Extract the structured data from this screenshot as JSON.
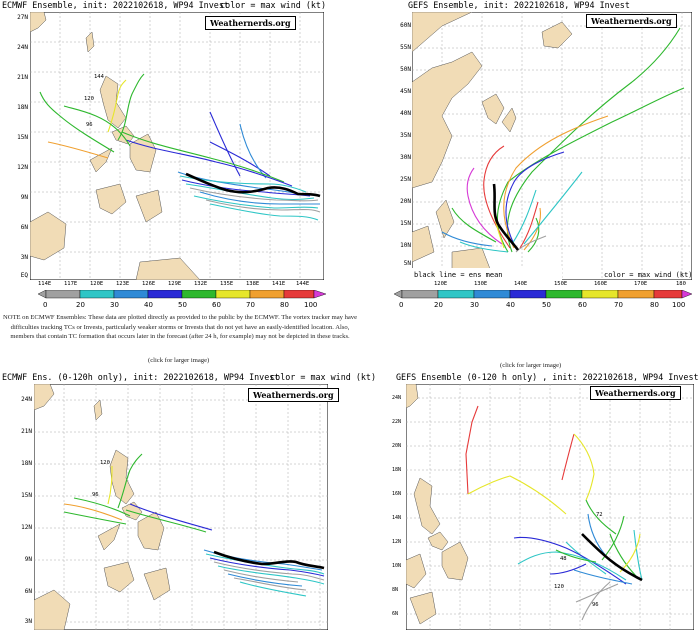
{
  "panels": [
    {
      "title": "ECMWF Ensemble, init: 2022102618, WP94 Invest",
      "right": "color = max wind (kt)"
    },
    {
      "title": "GEFS Ensemble, init: 2022102618, WP94 Invest",
      "right": "color = max wind (kt)"
    },
    {
      "title": "ECMWF Ens. (0-120h only), init: 2022102618, WP94 Invest",
      "right": "color = max wind (kt)"
    },
    {
      "title": "GEFS Ensemble (0-120 h only) , init: 2022102618, WP94 Invest",
      "right": ""
    }
  ],
  "brand": "Weathernerds.org",
  "p1": {
    "lat_labels": [
      "27N",
      "24N",
      "21N",
      "18N",
      "15N",
      "12N",
      "9N",
      "6N",
      "3N",
      "EQ"
    ],
    "lon_labels": [
      "114E",
      "117E",
      "120E",
      "123E",
      "126E",
      "129E",
      "132E",
      "135E",
      "138E",
      "141E",
      "144E"
    ],
    "hour_labels": [
      "144",
      "120",
      "96"
    ]
  },
  "p2": {
    "lat_labels": [
      "60N",
      "55N",
      "50N",
      "45N",
      "40N",
      "35N",
      "30N",
      "25N",
      "20N",
      "15N",
      "10N",
      "5N"
    ],
    "lon_labels": [
      "120E",
      "130E",
      "140E",
      "150E",
      "160E",
      "170E",
      "180"
    ],
    "legend": "black line = ens mean",
    "legend_right": "color = max wind (kt)"
  },
  "p3": {
    "lat_labels": [
      "24N",
      "21N",
      "18N",
      "15N",
      "12N",
      "9N",
      "6N",
      "3N"
    ],
    "hour_labels": [
      "120",
      "96"
    ]
  },
  "p4": {
    "lat_labels": [
      "24N",
      "22N",
      "20N",
      "18N",
      "16N",
      "14N",
      "12N",
      "10N",
      "8N",
      "6N"
    ],
    "hour_labels": [
      "120",
      "96",
      "72",
      "48"
    ]
  },
  "colorbar": {
    "labels": [
      "0",
      "20",
      "30",
      "40",
      "50",
      "60",
      "70",
      "80",
      "100"
    ],
    "colors": [
      "#a0a0a0",
      "#2fc6c6",
      "#2f8ad6",
      "#2a2ad6",
      "#2eb82e",
      "#e6e62a",
      "#f0a030",
      "#e63a3a",
      "#d63ad6"
    ]
  },
  "note": "NOTE on ECMWF Ensembles: These data are plotted directly as provided to the public by the ECMWF. The vortex tracker may have difficulties tracking TCs or Invests, particularly weaker storms or Invests that do not yet have an easily-identified location. Also, members that contain TC formation that occurs later in the forecast (after 24 h, for example) may not be depicted in these tracks.",
  "click_left": "(click for larger image)",
  "click_right": "(click for larger image)"
}
